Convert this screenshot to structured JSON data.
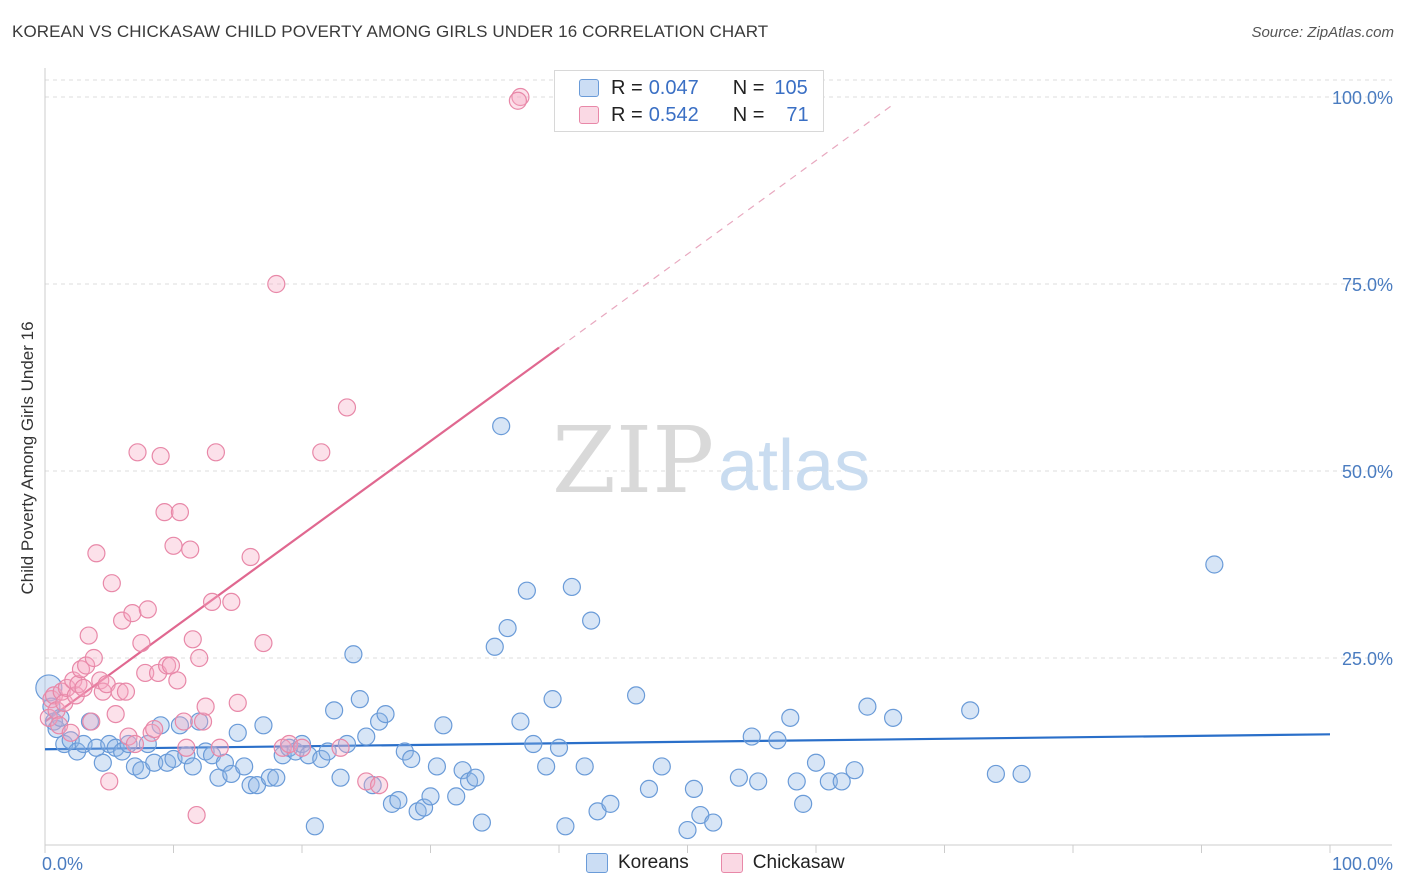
{
  "title": "KOREAN VS CHICKASAW CHILD POVERTY AMONG GIRLS UNDER 16 CORRELATION CHART",
  "source": "Source: ZipAtlas.com",
  "watermark": {
    "part1": "ZIP",
    "part2": "atlas"
  },
  "legend": {
    "rows": [
      {
        "r_label": "R = ",
        "r_value": "0.047",
        "n_label": "N = ",
        "n_value": "105"
      },
      {
        "r_label": "R = ",
        "r_value": "0.542",
        "n_label": "N = ",
        "n_value": "71"
      }
    ]
  },
  "bottom_legend": [
    {
      "label": "Koreans"
    },
    {
      "label": "Chickasaw"
    }
  ],
  "colors": {
    "korean_fill": "rgba(140,180,230,0.35)",
    "korean_stroke": "#6a9bd8",
    "korean_line": "#2a6fc9",
    "chickasaw_fill": "rgba(245,170,195,0.35)",
    "chickasaw_stroke": "#e888a8",
    "chickasaw_line": "#e06890",
    "tick_label": "#4a7cc0",
    "grid": "#dddddd"
  },
  "chart_data": {
    "type": "scatter",
    "title": "KOREAN VS CHICKASAW CHILD POVERTY AMONG GIRLS UNDER 16 CORRELATION CHART",
    "xlabel": "",
    "ylabel": "Child Poverty Among Girls Under 16",
    "xlim": [
      0,
      100
    ],
    "ylim": [
      0,
      100
    ],
    "x_tick_labels": [
      "0.0%",
      "100.0%"
    ],
    "y_tick_labels": [
      "25.0%",
      "50.0%",
      "75.0%",
      "100.0%"
    ],
    "y_ticks": [
      25,
      50,
      75,
      100
    ],
    "grid": true,
    "legend_position": "top-center",
    "series": [
      {
        "name": "Koreans",
        "R": 0.047,
        "N": 105,
        "trend": {
          "x": [
            0,
            100
          ],
          "y": [
            12.8,
            14.8
          ],
          "style": "solid"
        },
        "points": [
          [
            0.3,
            21.0
          ],
          [
            0.5,
            18.5
          ],
          [
            0.7,
            16.5
          ],
          [
            0.9,
            15.5
          ],
          [
            1.2,
            17.0
          ],
          [
            1.5,
            13.5
          ],
          [
            2.0,
            14.0
          ],
          [
            2.5,
            12.5
          ],
          [
            3.0,
            13.5
          ],
          [
            3.5,
            16.5
          ],
          [
            4.0,
            13.0
          ],
          [
            4.5,
            11.0
          ],
          [
            5.0,
            13.5
          ],
          [
            5.5,
            13.0
          ],
          [
            6.0,
            12.5
          ],
          [
            6.5,
            13.5
          ],
          [
            7.0,
            10.5
          ],
          [
            7.5,
            10.0
          ],
          [
            8.0,
            13.5
          ],
          [
            8.5,
            11.0
          ],
          [
            9.0,
            16.0
          ],
          [
            9.5,
            11.0
          ],
          [
            10.0,
            11.5
          ],
          [
            10.5,
            16.0
          ],
          [
            11.0,
            12.0
          ],
          [
            11.5,
            10.5
          ],
          [
            12.0,
            16.5
          ],
          [
            12.5,
            12.5
          ],
          [
            13.0,
            12.0
          ],
          [
            13.5,
            9.0
          ],
          [
            14.0,
            11.0
          ],
          [
            14.5,
            9.5
          ],
          [
            15.0,
            15.0
          ],
          [
            15.5,
            10.5
          ],
          [
            16.0,
            8.0
          ],
          [
            16.5,
            8.0
          ],
          [
            17.0,
            16.0
          ],
          [
            17.5,
            9.0
          ],
          [
            18.0,
            9.0
          ],
          [
            18.5,
            12.0
          ],
          [
            19.0,
            13.0
          ],
          [
            19.5,
            12.5
          ],
          [
            20.0,
            13.5
          ],
          [
            20.5,
            12.0
          ],
          [
            21.0,
            2.5
          ],
          [
            21.5,
            11.5
          ],
          [
            22.0,
            12.5
          ],
          [
            22.5,
            18.0
          ],
          [
            23.0,
            9.0
          ],
          [
            23.5,
            13.5
          ],
          [
            24.0,
            25.5
          ],
          [
            24.5,
            19.5
          ],
          [
            25.0,
            14.5
          ],
          [
            25.5,
            8.0
          ],
          [
            26.0,
            16.5
          ],
          [
            26.5,
            17.5
          ],
          [
            27.0,
            5.5
          ],
          [
            27.5,
            6.0
          ],
          [
            28.0,
            12.5
          ],
          [
            28.5,
            11.5
          ],
          [
            29.0,
            4.5
          ],
          [
            29.5,
            5.0
          ],
          [
            30.0,
            6.5
          ],
          [
            30.5,
            10.5
          ],
          [
            31.0,
            16.0
          ],
          [
            32.0,
            6.5
          ],
          [
            32.5,
            10.0
          ],
          [
            33.0,
            8.5
          ],
          [
            33.5,
            9.0
          ],
          [
            34.0,
            3.0
          ],
          [
            35.0,
            26.5
          ],
          [
            35.5,
            56.0
          ],
          [
            36.0,
            29.0
          ],
          [
            37.0,
            16.5
          ],
          [
            37.5,
            34.0
          ],
          [
            38.0,
            13.5
          ],
          [
            39.0,
            10.5
          ],
          [
            39.5,
            19.5
          ],
          [
            40.0,
            13.0
          ],
          [
            40.5,
            2.5
          ],
          [
            41.0,
            34.5
          ],
          [
            42.0,
            10.5
          ],
          [
            42.5,
            30.0
          ],
          [
            43.0,
            4.5
          ],
          [
            44.0,
            5.5
          ],
          [
            46.0,
            20.0
          ],
          [
            47.0,
            7.5
          ],
          [
            48.0,
            10.5
          ],
          [
            50.0,
            2.0
          ],
          [
            50.5,
            7.5
          ],
          [
            51.0,
            4.0
          ],
          [
            52.0,
            3.0
          ],
          [
            54.0,
            9.0
          ],
          [
            55.0,
            14.5
          ],
          [
            55.5,
            8.5
          ],
          [
            57.0,
            14.0
          ],
          [
            58.0,
            17.0
          ],
          [
            58.5,
            8.5
          ],
          [
            59.0,
            5.5
          ],
          [
            60.0,
            11.0
          ],
          [
            61.0,
            8.5
          ],
          [
            62.0,
            8.5
          ],
          [
            63.0,
            10.0
          ],
          [
            64.0,
            18.5
          ],
          [
            66.0,
            17.0
          ],
          [
            72.0,
            18.0
          ],
          [
            74.0,
            9.5
          ],
          [
            76.0,
            9.5
          ],
          [
            91.0,
            37.5
          ]
        ]
      },
      {
        "name": "Chickasaw",
        "R": 0.542,
        "N": 71,
        "trend": {
          "x": [
            0,
            40
          ],
          "y": [
            16.5,
            66.5
          ],
          "style": "solid",
          "extension_x": [
            40,
            66
          ],
          "extension_y": [
            66.5,
            99.0
          ],
          "extension_style": "dashed"
        },
        "points": [
          [
            0.3,
            17.0
          ],
          [
            0.5,
            19.5
          ],
          [
            0.7,
            20.0
          ],
          [
            0.9,
            18.0
          ],
          [
            1.1,
            16.0
          ],
          [
            1.3,
            20.5
          ],
          [
            1.5,
            19.0
          ],
          [
            1.7,
            21.0
          ],
          [
            2.0,
            15.0
          ],
          [
            2.2,
            22.0
          ],
          [
            2.4,
            20.0
          ],
          [
            2.6,
            21.5
          ],
          [
            2.8,
            23.5
          ],
          [
            3.0,
            21.0
          ],
          [
            3.2,
            24.0
          ],
          [
            3.4,
            28.0
          ],
          [
            3.6,
            16.5
          ],
          [
            3.8,
            25.0
          ],
          [
            4.0,
            39.0
          ],
          [
            4.3,
            22.0
          ],
          [
            4.5,
            20.5
          ],
          [
            4.8,
            21.5
          ],
          [
            5.0,
            8.5
          ],
          [
            5.2,
            35.0
          ],
          [
            5.5,
            17.5
          ],
          [
            5.8,
            20.5
          ],
          [
            6.0,
            30.0
          ],
          [
            6.3,
            20.5
          ],
          [
            6.5,
            14.5
          ],
          [
            6.8,
            31.0
          ],
          [
            7.0,
            13.5
          ],
          [
            7.2,
            52.5
          ],
          [
            7.5,
            27.0
          ],
          [
            7.8,
            23.0
          ],
          [
            8.0,
            31.5
          ],
          [
            8.3,
            15.0
          ],
          [
            8.5,
            15.5
          ],
          [
            8.8,
            23.0
          ],
          [
            9.0,
            52.0
          ],
          [
            9.3,
            44.5
          ],
          [
            9.5,
            24.0
          ],
          [
            9.8,
            24.0
          ],
          [
            10.0,
            40.0
          ],
          [
            10.3,
            22.0
          ],
          [
            10.5,
            44.5
          ],
          [
            10.8,
            16.5
          ],
          [
            11.0,
            13.0
          ],
          [
            11.3,
            39.5
          ],
          [
            11.5,
            27.5
          ],
          [
            11.8,
            4.0
          ],
          [
            12.0,
            25.0
          ],
          [
            12.3,
            16.5
          ],
          [
            12.5,
            18.5
          ],
          [
            13.0,
            32.5
          ],
          [
            13.3,
            52.5
          ],
          [
            13.6,
            13.0
          ],
          [
            14.5,
            32.5
          ],
          [
            15.0,
            19.0
          ],
          [
            16.0,
            38.5
          ],
          [
            17.0,
            27.0
          ],
          [
            18.0,
            75.0
          ],
          [
            18.5,
            13.0
          ],
          [
            19.0,
            13.5
          ],
          [
            20.0,
            13.0
          ],
          [
            21.5,
            52.5
          ],
          [
            23.0,
            13.0
          ],
          [
            23.5,
            58.5
          ],
          [
            25.0,
            8.5
          ],
          [
            26.0,
            8.0
          ],
          [
            37.0,
            100.0
          ],
          [
            36.8,
            99.5
          ]
        ]
      }
    ]
  }
}
